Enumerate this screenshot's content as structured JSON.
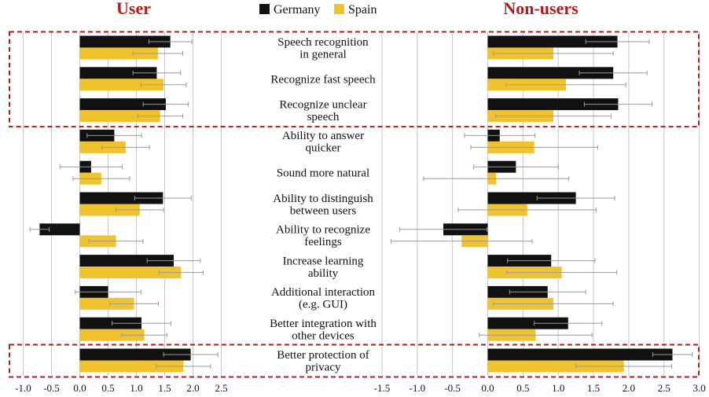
{
  "chart_data": {
    "type": "bar",
    "orientation": "horizontal",
    "legend": {
      "placement": "top-center"
    },
    "colors": {
      "Germany": "#111111",
      "Spain": "#f0c22e",
      "highlight_border": "#b01c1c",
      "error_bar": "#9a9a9a",
      "grid": "#c8c8c8"
    },
    "categories": [
      "Speech recognition in general",
      "Recognize fast speech",
      "Recognize unclear speech",
      "Ability to answer quicker",
      "Sound more natural",
      "Ability to distinguish between users",
      "Ability to recognize feelings",
      "Increase learning ability",
      "Additional interaction (e.g. GUI)",
      "Better integration with other devices",
      "Better protection of privacy"
    ],
    "category_lines": [
      [
        "Speech recognition",
        "in general"
      ],
      [
        "Recognize fast speech"
      ],
      [
        "Recognize unclear",
        "speech"
      ],
      [
        "Ability to answer",
        "quicker"
      ],
      [
        "Sound more natural"
      ],
      [
        "Ability to distinguish",
        "between users"
      ],
      [
        "Ability to recognize",
        "feelings"
      ],
      [
        "Increase learning",
        "ability"
      ],
      [
        "Additional interaction",
        "(e.g. GUI)"
      ],
      [
        "Better integration with",
        "other devices"
      ],
      [
        "Better protection of",
        "privacy"
      ]
    ],
    "highlight_groups": [
      [
        0,
        2
      ],
      [
        10,
        10
      ]
    ],
    "panels": [
      {
        "title": "User",
        "xlim": [
          -1.0,
          2.5
        ],
        "xticks": [
          "-1.0",
          "-0.5",
          "0.0",
          "0.5",
          "1.0",
          "1.5",
          "2.0",
          "2.5"
        ],
        "series": [
          {
            "name": "Germany",
            "values": [
              1.6,
              1.36,
              1.52,
              0.61,
              0.2,
              1.47,
              -0.71,
              1.66,
              0.5,
              1.09,
              1.96
            ],
            "errors": [
              0.38,
              0.42,
              0.4,
              0.48,
              0.55,
              0.5,
              0.17,
              0.47,
              0.58,
              0.52,
              0.48
            ]
          },
          {
            "name": "Spain",
            "values": [
              1.38,
              1.48,
              1.42,
              0.81,
              0.38,
              1.06,
              0.64,
              1.79,
              0.96,
              1.14,
              1.83
            ],
            "errors": [
              0.44,
              0.4,
              0.4,
              0.42,
              0.5,
              0.42,
              0.48,
              0.39,
              0.43,
              0.4,
              0.48
            ]
          }
        ]
      },
      {
        "title": "Non-users",
        "xlim": [
          -1.5,
          3.0
        ],
        "xticks": [
          "-1.5",
          "-1.0",
          "-0.5",
          "0.0",
          "0.5",
          "1.0",
          "1.5",
          "2.0",
          "2.5",
          "3.0"
        ],
        "series": [
          {
            "name": "Germany",
            "values": [
              1.84,
              1.78,
              1.85,
              0.17,
              0.4,
              1.25,
              -0.63,
              0.9,
              0.85,
              1.14,
              2.62
            ],
            "errors": [
              0.45,
              0.48,
              0.48,
              0.5,
              0.6,
              0.55,
              0.62,
              0.62,
              0.54,
              0.48,
              0.28
            ]
          },
          {
            "name": "Spain",
            "values": [
              0.93,
              1.11,
              0.93,
              0.66,
              0.12,
              0.56,
              -0.37,
              1.05,
              0.93,
              0.68,
              1.93
            ],
            "errors": [
              0.85,
              0.85,
              0.82,
              0.9,
              1.03,
              0.98,
              1.0,
              0.78,
              0.85,
              0.8,
              0.68
            ]
          }
        ]
      }
    ]
  }
}
